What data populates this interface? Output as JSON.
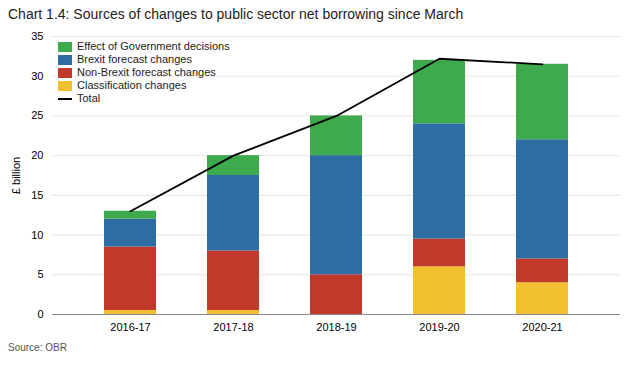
{
  "chart_data": {
    "type": "bar",
    "title": "Chart 1.4: Sources of changes to public sector net borrowing since March",
    "categories": [
      "2016-17",
      "2017-18",
      "2018-19",
      "2019-20",
      "2020-21"
    ],
    "series": [
      {
        "name": "Classification changes",
        "color": "#f0c030",
        "values": [
          0.5,
          0.5,
          0.0,
          6.0,
          4.0
        ]
      },
      {
        "name": "Non-Brexit forecast changes",
        "color": "#c0392b",
        "values": [
          8.0,
          7.5,
          5.0,
          3.5,
          3.0
        ]
      },
      {
        "name": "Brexit forecast changes",
        "color": "#2e6da4",
        "values": [
          3.5,
          9.5,
          15.0,
          14.5,
          15.0
        ]
      },
      {
        "name": "Effect of Government decisions",
        "color": "#3daa4e",
        "values": [
          1.0,
          2.5,
          5.0,
          8.0,
          9.5
        ]
      },
      {
        "name": "Total",
        "type": "line",
        "color": "#000000",
        "values": [
          13.0,
          20.0,
          25.0,
          32.2,
          31.5
        ]
      }
    ],
    "ylabel": "£ billion",
    "ylim": [
      0,
      35
    ],
    "yticks": [
      0,
      5,
      10,
      15,
      20,
      25,
      30,
      35
    ],
    "grid": true,
    "legend": "upper left",
    "stacked": true,
    "source": "Source: OBR"
  }
}
